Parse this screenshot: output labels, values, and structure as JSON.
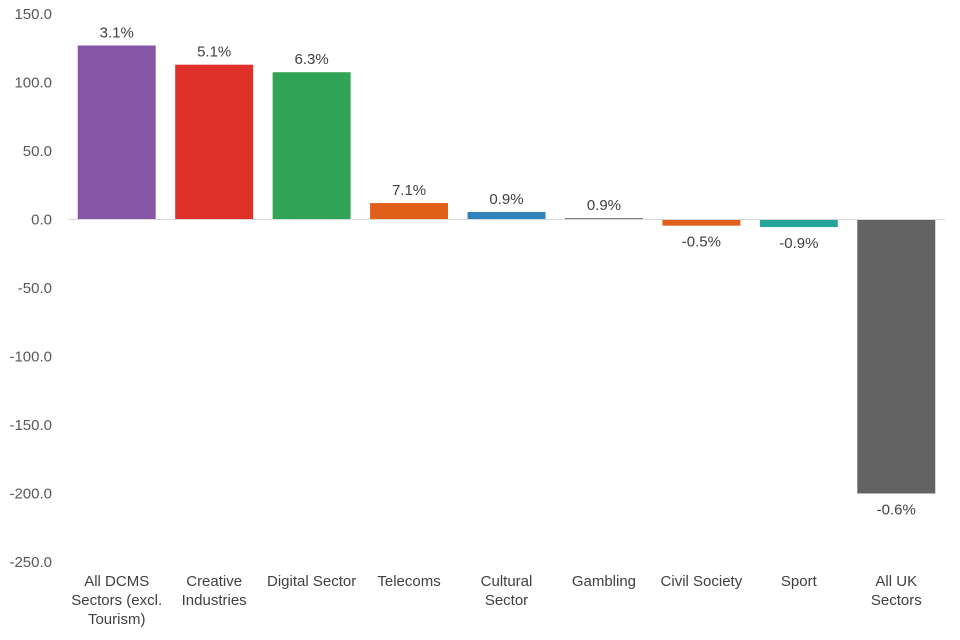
{
  "chart_data": {
    "type": "bar",
    "title": "",
    "xlabel": "",
    "ylabel": "",
    "ylim": [
      -250,
      150
    ],
    "yticks": [
      150,
      100,
      50,
      0,
      -50,
      -100,
      -150,
      -200,
      -250
    ],
    "ytick_labels": [
      "150.0",
      "100.0",
      "50.0",
      "0.0",
      "-50.0",
      "-100.0",
      "-150.0",
      "-200.0",
      "-250.0"
    ],
    "grid": false,
    "legend": "none",
    "categories": [
      [
        "All DCMS",
        "Sectors (excl.",
        "Tourism)"
      ],
      [
        "Creative",
        "Industries"
      ],
      [
        "Digital Sector"
      ],
      [
        "Telecoms"
      ],
      [
        "Cultural",
        "Sector"
      ],
      [
        "Gambling"
      ],
      [
        "Civil Society"
      ],
      [
        "Sport"
      ],
      [
        "All UK",
        "Sectors"
      ]
    ],
    "values": [
      127.0,
      113.0,
      107.5,
      12.0,
      5.5,
      1.0,
      -4.5,
      -5.5,
      -200.0
    ],
    "data_labels": [
      "3.1%",
      "5.1%",
      "6.3%",
      "7.1%",
      "0.9%",
      "0.9%",
      "-0.5%",
      "-0.9%",
      "-0.6%"
    ],
    "colors": [
      "#8856a7",
      "#e0302a",
      "#31a354",
      "#e0601a",
      "#3182bd",
      "#7f7f7f",
      "#e0601a",
      "#26a39a",
      "#636363"
    ]
  }
}
